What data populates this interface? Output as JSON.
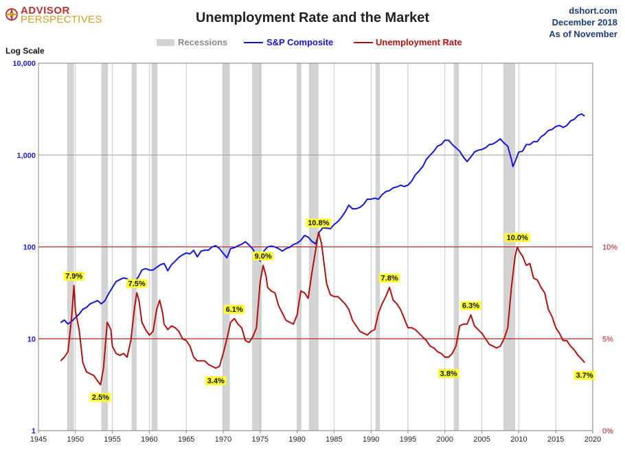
{
  "logo": {
    "line1": "ADVISOR",
    "line2": "PERSPECTIVES"
  },
  "source": {
    "site": "dshort.com",
    "date": "December 2018",
    "asof": "As of November"
  },
  "colors": {
    "sp": "#1414d6",
    "unemp": "#b01010",
    "recession": "#d3d3d3",
    "annotation_bg": "#ffff33"
  },
  "chart_data": {
    "type": "line",
    "title": "Unemployment Rate and the Market",
    "left_axis_label": "Log Scale",
    "left_axis": {
      "scale": "log",
      "range": [
        1,
        10000
      ],
      "ticks": [
        "1",
        "10",
        "100",
        "1,000",
        "10,000"
      ],
      "tick_values": [
        1,
        10,
        100,
        1000,
        10000
      ]
    },
    "right_axis": {
      "range": [
        0,
        20
      ],
      "ticks": [
        "0%",
        "5%",
        "10%"
      ],
      "tick_values": [
        0,
        5,
        10
      ]
    },
    "x_axis": {
      "range": [
        1945,
        2020
      ],
      "ticks": [
        "1945",
        "1950",
        "1955",
        "1960",
        "1965",
        "1970",
        "1975",
        "1980",
        "1985",
        "1990",
        "1995",
        "2000",
        "2005",
        "2010",
        "2015",
        "2020"
      ]
    },
    "grid": true,
    "reference_lines_pct": [
      5,
      10
    ],
    "legend": {
      "position": "top",
      "items": [
        "Recessions",
        "S&P Composite",
        "Unemployment Rate"
      ]
    },
    "recessions": [
      [
        1948.9,
        1949.8
      ],
      [
        1953.5,
        1954.4
      ],
      [
        1957.6,
        1958.3
      ],
      [
        1960.3,
        1961.1
      ],
      [
        1969.9,
        1970.9
      ],
      [
        1973.9,
        1975.2
      ],
      [
        1980.0,
        1980.6
      ],
      [
        1981.6,
        1982.9
      ],
      [
        1990.6,
        1991.2
      ],
      [
        2001.2,
        2001.9
      ],
      [
        2007.9,
        2009.5
      ]
    ],
    "series": [
      {
        "name": "S&P Composite",
        "axis": "left",
        "x": [
          1948.0,
          1948.5,
          1949.0,
          1949.5,
          1950.0,
          1950.5,
          1951.0,
          1951.5,
          1952.0,
          1952.5,
          1953.0,
          1953.5,
          1954.0,
          1954.5,
          1955.0,
          1955.5,
          1956.0,
          1956.5,
          1957.0,
          1957.5,
          1958.0,
          1958.5,
          1959.0,
          1959.5,
          1960.0,
          1960.5,
          1961.0,
          1961.5,
          1962.0,
          1962.5,
          1963.0,
          1963.5,
          1964.0,
          1964.5,
          1965.0,
          1965.5,
          1966.0,
          1966.5,
          1967.0,
          1967.5,
          1968.0,
          1968.5,
          1969.0,
          1969.5,
          1970.0,
          1970.5,
          1971.0,
          1971.5,
          1972.0,
          1972.5,
          1973.0,
          1973.5,
          1974.0,
          1974.5,
          1975.0,
          1975.5,
          1976.0,
          1976.5,
          1977.0,
          1977.5,
          1978.0,
          1978.5,
          1979.0,
          1979.5,
          1980.0,
          1980.5,
          1981.0,
          1981.5,
          1982.0,
          1982.5,
          1983.0,
          1983.5,
          1984.0,
          1984.5,
          1985.0,
          1985.5,
          1986.0,
          1986.5,
          1987.0,
          1987.5,
          1988.0,
          1988.5,
          1989.0,
          1989.5,
          1990.0,
          1990.5,
          1991.0,
          1991.5,
          1992.0,
          1992.5,
          1993.0,
          1993.5,
          1994.0,
          1994.5,
          1995.0,
          1995.5,
          1996.0,
          1996.5,
          1997.0,
          1997.5,
          1998.0,
          1998.5,
          1999.0,
          1999.5,
          2000.0,
          2000.5,
          2001.0,
          2001.5,
          2002.0,
          2002.5,
          2003.0,
          2003.5,
          2004.0,
          2004.5,
          2005.0,
          2005.5,
          2006.0,
          2006.5,
          2007.0,
          2007.5,
          2008.0,
          2008.5,
          2009.0,
          2009.2,
          2009.5,
          2010.0,
          2010.5,
          2011.0,
          2011.5,
          2012.0,
          2012.5,
          2013.0,
          2013.5,
          2014.0,
          2014.5,
          2015.0,
          2015.5,
          2016.0,
          2016.5,
          2017.0,
          2017.5,
          2018.0,
          2018.5,
          2018.9
        ],
        "values": [
          15,
          16,
          14.5,
          15.5,
          17,
          18.5,
          21,
          22,
          24,
          25,
          26,
          24,
          26,
          31,
          36,
          42,
          44,
          46,
          45,
          42,
          42,
          47,
          56,
          58,
          56,
          56,
          60,
          64,
          66,
          55,
          64,
          70,
          77,
          82,
          86,
          84,
          92,
          78,
          90,
          92,
          92,
          100,
          103,
          96,
          85,
          76,
          96,
          98,
          103,
          107,
          114,
          105,
          95,
          80,
          70,
          90,
          100,
          102,
          100,
          96,
          90,
          96,
          99,
          106,
          110,
          118,
          133,
          128,
          115,
          108,
          145,
          162,
          160,
          158,
          175,
          188,
          210,
          240,
          285,
          260,
          260,
          270,
          290,
          330,
          330,
          340,
          330,
          370,
          400,
          410,
          440,
          450,
          470,
          455,
          470,
          520,
          610,
          670,
          750,
          900,
          1000,
          1100,
          1250,
          1300,
          1450,
          1450,
          1300,
          1200,
          1100,
          950,
          850,
          950,
          1080,
          1130,
          1150,
          1200,
          1300,
          1320,
          1400,
          1500,
          1350,
          1250,
          900,
          750,
          850,
          1080,
          1100,
          1300,
          1300,
          1400,
          1400,
          1580,
          1680,
          1850,
          1900,
          2050,
          2100,
          2000,
          2100,
          2350,
          2450,
          2700,
          2800,
          2650
        ]
      },
      {
        "name": "Unemployment Rate",
        "axis": "right",
        "x": [
          1948.0,
          1948.5,
          1949.0,
          1949.5,
          1949.8,
          1950.0,
          1950.5,
          1951.0,
          1951.5,
          1952.0,
          1952.5,
          1953.0,
          1953.4,
          1953.8,
          1954.3,
          1954.8,
          1955.0,
          1955.5,
          1956.0,
          1956.5,
          1957.0,
          1957.5,
          1958.0,
          1958.3,
          1958.6,
          1959.0,
          1959.5,
          1960.0,
          1960.5,
          1961.0,
          1961.4,
          1961.8,
          1962.0,
          1962.5,
          1963.0,
          1963.5,
          1964.0,
          1964.5,
          1965.0,
          1965.5,
          1966.0,
          1966.5,
          1967.0,
          1967.5,
          1968.0,
          1968.5,
          1969.0,
          1969.5,
          1970.0,
          1970.5,
          1971.0,
          1971.5,
          1972.0,
          1972.5,
          1973.0,
          1973.5,
          1974.0,
          1974.5,
          1975.0,
          1975.4,
          1975.8,
          1976.0,
          1976.5,
          1977.0,
          1977.5,
          1978.0,
          1978.5,
          1979.0,
          1979.5,
          1980.0,
          1980.5,
          1981.0,
          1981.5,
          1982.0,
          1982.5,
          1982.9,
          1983.3,
          1983.8,
          1984.0,
          1984.5,
          1985.0,
          1985.5,
          1986.0,
          1986.5,
          1987.0,
          1987.5,
          1988.0,
          1988.5,
          1989.0,
          1989.5,
          1990.0,
          1990.5,
          1991.0,
          1991.5,
          1992.0,
          1992.5,
          1993.0,
          1993.5,
          1994.0,
          1994.5,
          1995.0,
          1995.5,
          1996.0,
          1996.5,
          1997.0,
          1997.5,
          1998.0,
          1998.5,
          1999.0,
          1999.5,
          2000.0,
          2000.5,
          2001.0,
          2001.5,
          2002.0,
          2002.5,
          2003.0,
          2003.5,
          2004.0,
          2004.5,
          2005.0,
          2005.5,
          2006.0,
          2006.5,
          2007.0,
          2007.5,
          2008.0,
          2008.5,
          2009.0,
          2009.5,
          2009.8,
          2010.0,
          2010.5,
          2011.0,
          2011.5,
          2012.0,
          2012.5,
          2013.0,
          2013.5,
          2014.0,
          2014.5,
          2015.0,
          2015.5,
          2016.0,
          2016.5,
          2017.0,
          2017.5,
          2018.0,
          2018.5,
          2018.9
        ],
        "values": [
          3.8,
          4.0,
          4.3,
          6.2,
          7.9,
          6.5,
          5.5,
          3.7,
          3.2,
          3.1,
          3.0,
          2.7,
          2.5,
          3.4,
          5.9,
          5.5,
          4.6,
          4.2,
          4.1,
          4.2,
          4.0,
          4.9,
          6.7,
          7.5,
          7.1,
          5.9,
          5.5,
          5.2,
          5.4,
          6.6,
          7.1,
          6.4,
          5.8,
          5.5,
          5.7,
          5.6,
          5.4,
          5.0,
          4.9,
          4.6,
          4.0,
          3.8,
          3.8,
          3.8,
          3.6,
          3.5,
          3.4,
          3.5,
          4.2,
          5.0,
          5.9,
          6.1,
          5.8,
          5.6,
          4.9,
          4.8,
          5.1,
          5.6,
          8.1,
          9.0,
          8.4,
          7.8,
          7.6,
          7.5,
          6.8,
          6.4,
          6.0,
          5.9,
          5.8,
          6.3,
          7.6,
          7.5,
          7.2,
          8.6,
          9.8,
          10.8,
          10.2,
          8.6,
          8.0,
          7.4,
          7.3,
          7.3,
          7.1,
          6.9,
          6.6,
          6.0,
          5.7,
          5.4,
          5.3,
          5.2,
          5.4,
          5.5,
          6.4,
          6.9,
          7.3,
          7.8,
          7.1,
          6.9,
          6.6,
          6.1,
          5.6,
          5.6,
          5.5,
          5.3,
          5.1,
          4.9,
          4.6,
          4.5,
          4.3,
          4.2,
          4.0,
          4.0,
          4.2,
          4.6,
          5.7,
          5.8,
          5.8,
          6.3,
          5.7,
          5.5,
          5.3,
          5.0,
          4.7,
          4.6,
          4.5,
          4.6,
          5.0,
          5.6,
          7.8,
          9.5,
          10.0,
          9.8,
          9.5,
          9.0,
          9.1,
          8.3,
          8.2,
          7.8,
          7.5,
          6.6,
          6.2,
          5.6,
          5.3,
          4.9,
          4.9,
          4.6,
          4.4,
          4.1,
          3.9,
          3.7
        ]
      }
    ],
    "annotations": [
      {
        "label": "7.9%",
        "x": 1949.8,
        "y": 7.9
      },
      {
        "label": "2.5%",
        "x": 1953.4,
        "y": 2.5
      },
      {
        "label": "7.5%",
        "x": 1958.3,
        "y": 7.5
      },
      {
        "label": "3.4%",
        "x": 1969.0,
        "y": 3.4
      },
      {
        "label": "6.1%",
        "x": 1971.5,
        "y": 6.1
      },
      {
        "label": "9.0%",
        "x": 1975.4,
        "y": 9.0
      },
      {
        "label": "10.8%",
        "x": 1982.9,
        "y": 10.8
      },
      {
        "label": "7.8%",
        "x": 1992.5,
        "y": 7.8
      },
      {
        "label": "3.8%",
        "x": 2000.5,
        "y": 3.8
      },
      {
        "label": "6.3%",
        "x": 2003.5,
        "y": 6.3
      },
      {
        "label": "10.0%",
        "x": 2009.8,
        "y": 10.0
      },
      {
        "label": "3.7%",
        "x": 2018.9,
        "y": 3.7
      }
    ]
  }
}
